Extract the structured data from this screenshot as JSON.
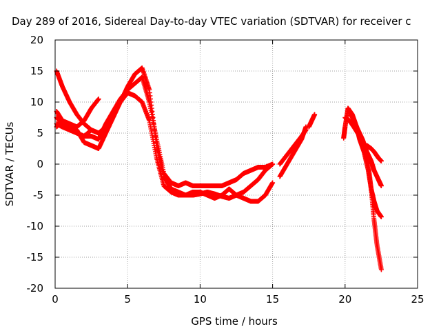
{
  "chart_data": {
    "type": "scatter",
    "title": "Day 289 of 2016, Sidereal Day-to-day VTEC variation (SDTVAR) for receiver c",
    "xlabel": "GPS time / hours",
    "ylabel": "SDTVAR / TECUs",
    "xlim": [
      0,
      25
    ],
    "ylim": [
      -20,
      20
    ],
    "x_ticks": [
      "0",
      "5",
      "10",
      "15",
      "20",
      "25"
    ],
    "y_ticks": [
      "20",
      "15",
      "10",
      "5",
      "0",
      "-5",
      "-10",
      "-15",
      "-20"
    ],
    "x_tick_values": [
      0,
      5,
      10,
      15,
      20,
      25
    ],
    "y_tick_values": [
      20,
      15,
      10,
      5,
      0,
      -5,
      -10,
      -15,
      -20
    ],
    "grid": true,
    "marker": "plus",
    "color": "#ff0000",
    "series": [
      {
        "x": [
          0.1,
          0.5,
          1.0,
          1.5,
          2.0,
          2.5,
          3.0,
          3.5,
          4.0,
          4.5,
          5.0,
          5.5,
          6.0,
          6.5,
          7.0,
          7.5,
          8.0,
          8.5,
          9.0,
          9.5,
          10.0,
          10.5,
          11.0,
          11.5,
          12.0,
          12.5,
          13.0,
          13.5,
          14.0,
          14.5,
          15.0
        ],
        "y": [
          15.0,
          12.5,
          10.0,
          8.0,
          6.5,
          5.5,
          5.0,
          6.0,
          8.0,
          10.0,
          12.5,
          14.5,
          15.5,
          12.0,
          3.0,
          -2.0,
          -4.0,
          -4.5,
          -5.0,
          -5.0,
          -4.8,
          -4.5,
          -4.8,
          -5.2,
          -5.5,
          -5.0,
          -4.5,
          -3.5,
          -2.5,
          -1.0,
          0.0
        ]
      },
      {
        "x": [
          0.1,
          0.5,
          1.0,
          1.5,
          2.0,
          2.5,
          3.0,
          3.5,
          4.0,
          4.5,
          5.0,
          5.5,
          6.0,
          6.5,
          7.0,
          7.5,
          8.0,
          8.5,
          9.0,
          9.5,
          10.0,
          10.5,
          11.0,
          11.5,
          12.0,
          12.5,
          13.0,
          13.5,
          14.0,
          14.5,
          15.0
        ],
        "y": [
          8.5,
          7.0,
          6.0,
          5.5,
          3.5,
          3.0,
          2.5,
          5.0,
          7.5,
          10.0,
          11.5,
          11.0,
          10.0,
          7.0,
          1.0,
          -3.5,
          -4.5,
          -5.0,
          -5.0,
          -4.5,
          -4.5,
          -5.0,
          -5.5,
          -5.0,
          -4.0,
          -5.0,
          -5.5,
          -6.0,
          -6.0,
          -5.0,
          -3.0
        ]
      },
      {
        "x": [
          0.1,
          0.5,
          1.0,
          1.5,
          2.0,
          2.5,
          3.0,
          3.5,
          4.0,
          4.5,
          5.0,
          5.5,
          6.0,
          6.5,
          7.0,
          7.5,
          8.0,
          8.5,
          9.0,
          9.5,
          10.0,
          10.5,
          11.0,
          11.5,
          12.0,
          12.5,
          13.0,
          13.5,
          14.0,
          14.5,
          15.0
        ],
        "y": [
          6.5,
          6.0,
          5.5,
          5.0,
          4.5,
          4.5,
          4.0,
          6.5,
          8.5,
          10.5,
          12.0,
          13.0,
          14.0,
          10.0,
          4.0,
          -1.5,
          -3.0,
          -3.5,
          -3.0,
          -3.5,
          -3.5,
          -3.5,
          -3.5,
          -3.5,
          -3.0,
          -2.5,
          -1.5,
          -1.0,
          -0.5,
          -0.5,
          0.0
        ]
      },
      {
        "x": [
          0.1,
          0.5,
          1.0,
          1.5,
          2.0,
          2.5,
          3.0
        ],
        "y": [
          6.0,
          7.0,
          6.5,
          6.0,
          7.0,
          9.0,
          10.5
        ]
      },
      {
        "x": [
          0.1,
          0.5,
          1.0,
          1.5,
          2.0,
          2.5,
          3.0
        ],
        "y": [
          7.5,
          6.5,
          6.0,
          5.0,
          4.5,
          5.5,
          5.0
        ]
      },
      {
        "x": [
          15.5,
          16.0,
          16.5,
          17.0,
          17.3
        ],
        "y": [
          -2.0,
          0.0,
          2.0,
          4.0,
          6.0
        ]
      },
      {
        "x": [
          15.5,
          16.0,
          16.5,
          17.0,
          17.3
        ],
        "y": [
          0.0,
          1.5,
          3.0,
          4.5,
          5.5
        ]
      },
      {
        "x": [
          17.5,
          17.7,
          17.9
        ],
        "y": [
          6.0,
          7.0,
          8.0
        ]
      },
      {
        "x": [
          19.9,
          20.0,
          20.2,
          20.5,
          20.8,
          21.0,
          21.3,
          21.6,
          21.8,
          22.0,
          22.2,
          22.5
        ],
        "y": [
          4.2,
          6.0,
          9.0,
          8.0,
          6.0,
          4.0,
          2.0,
          -1.0,
          -4.0,
          -6.0,
          -7.5,
          -8.5
        ]
      },
      {
        "x": [
          20.0,
          20.3,
          20.6,
          21.0,
          21.3,
          21.6,
          21.8,
          22.0,
          22.2,
          22.5
        ],
        "y": [
          7.5,
          7.0,
          6.0,
          4.5,
          2.5,
          0.0,
          -4.0,
          -9.0,
          -13.0,
          -17.0
        ]
      },
      {
        "x": [
          20.2,
          20.5,
          20.8,
          21.2,
          21.5,
          21.8,
          22.0,
          22.3,
          22.5
        ],
        "y": [
          9.0,
          7.5,
          6.0,
          4.0,
          2.0,
          0.5,
          -1.0,
          -2.5,
          -3.5
        ]
      },
      {
        "x": [
          21.5,
          21.8,
          22.0,
          22.3,
          22.5
        ],
        "y": [
          3.0,
          2.5,
          2.0,
          1.0,
          0.5
        ]
      }
    ]
  }
}
